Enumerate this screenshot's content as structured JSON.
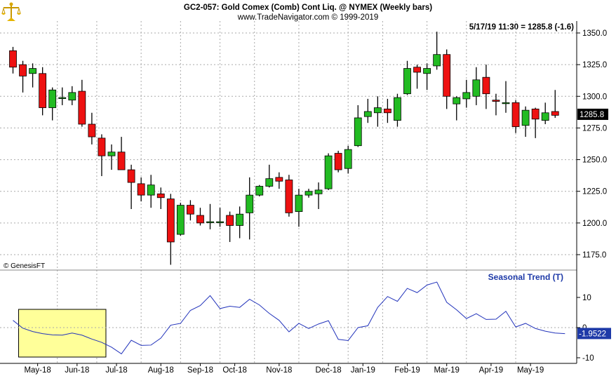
{
  "header": {
    "title": "GC2-057:  Gold Comex (Comb) Cont Liq. @ NYMEX  (Weekly bars)",
    "subtitle": "www.TradeNavigator.com © 1999-2019",
    "last_quote": "5/17/19 11:30 = 1285.8 (-1.6)",
    "copyright": "© GenesisFT",
    "logo_icon": "scales-logo-icon"
  },
  "chart_data": [
    {
      "type": "candlestick",
      "title": "GC2-057:  Gold Comex (Comb) Cont Liq. @ NYMEX  (Weekly bars)",
      "ylim": [
        1165,
        1360
      ],
      "yticks": [
        1175,
        1200,
        1225,
        1250,
        1275,
        1300,
        1325,
        1350
      ],
      "ytick_labels": [
        "1175.0",
        "1200.0",
        "1225.0",
        "1250.0",
        "1275.0",
        "1300.0",
        "1325.0",
        "1350.0"
      ],
      "current_value": 1285.8,
      "current_value_label": "1285.8",
      "up_color": "#22bb22",
      "down_color": "#ee1111",
      "candles": [
        {
          "o": 1336,
          "h": 1339,
          "l": 1318,
          "c": 1323
        },
        {
          "o": 1325,
          "h": 1328,
          "l": 1303,
          "c": 1316
        },
        {
          "o": 1318,
          "h": 1326,
          "l": 1307,
          "c": 1322
        },
        {
          "o": 1318,
          "h": 1323,
          "l": 1285,
          "c": 1291
        },
        {
          "o": 1291,
          "h": 1307,
          "l": 1281,
          "c": 1305
        },
        {
          "o": 1299,
          "h": 1307,
          "l": 1293,
          "c": 1299
        },
        {
          "o": 1297,
          "h": 1308,
          "l": 1293,
          "c": 1303
        },
        {
          "o": 1304,
          "h": 1313,
          "l": 1276,
          "c": 1278
        },
        {
          "o": 1278,
          "h": 1287,
          "l": 1262,
          "c": 1268
        },
        {
          "o": 1267,
          "h": 1270,
          "l": 1237,
          "c": 1253
        },
        {
          "o": 1253,
          "h": 1262,
          "l": 1242,
          "c": 1256
        },
        {
          "o": 1256,
          "h": 1268,
          "l": 1243,
          "c": 1242
        },
        {
          "o": 1242,
          "h": 1246,
          "l": 1211,
          "c": 1232
        },
        {
          "o": 1231,
          "h": 1236,
          "l": 1217,
          "c": 1222
        },
        {
          "o": 1222,
          "h": 1238,
          "l": 1212,
          "c": 1230
        },
        {
          "o": 1223,
          "h": 1228,
          "l": 1211,
          "c": 1220
        },
        {
          "o": 1219,
          "h": 1223,
          "l": 1167,
          "c": 1185
        },
        {
          "o": 1191,
          "h": 1216,
          "l": 1190,
          "c": 1214
        },
        {
          "o": 1214,
          "h": 1218,
          "l": 1202,
          "c": 1207
        },
        {
          "o": 1206,
          "h": 1212,
          "l": 1198,
          "c": 1200
        },
        {
          "o": 1201,
          "h": 1215,
          "l": 1195,
          "c": 1201
        },
        {
          "o": 1201,
          "h": 1212,
          "l": 1197,
          "c": 1201
        },
        {
          "o": 1206,
          "h": 1209,
          "l": 1185,
          "c": 1198
        },
        {
          "o": 1198,
          "h": 1213,
          "l": 1188,
          "c": 1207
        },
        {
          "o": 1208,
          "h": 1236,
          "l": 1187,
          "c": 1222
        },
        {
          "o": 1222,
          "h": 1230,
          "l": 1221,
          "c": 1229
        },
        {
          "o": 1229,
          "h": 1246,
          "l": 1228,
          "c": 1235
        },
        {
          "o": 1236,
          "h": 1240,
          "l": 1227,
          "c": 1233
        },
        {
          "o": 1234,
          "h": 1238,
          "l": 1205,
          "c": 1208
        },
        {
          "o": 1209,
          "h": 1227,
          "l": 1197,
          "c": 1222
        },
        {
          "o": 1222,
          "h": 1227,
          "l": 1220,
          "c": 1225
        },
        {
          "o": 1223,
          "h": 1232,
          "l": 1211,
          "c": 1226
        },
        {
          "o": 1227,
          "h": 1255,
          "l": 1226,
          "c": 1253
        },
        {
          "o": 1255,
          "h": 1257,
          "l": 1240,
          "c": 1242
        },
        {
          "o": 1243,
          "h": 1261,
          "l": 1239,
          "c": 1258
        },
        {
          "o": 1261,
          "h": 1293,
          "l": 1260,
          "c": 1283
        },
        {
          "o": 1284,
          "h": 1298,
          "l": 1279,
          "c": 1288
        },
        {
          "o": 1287,
          "h": 1300,
          "l": 1276,
          "c": 1291
        },
        {
          "o": 1290,
          "h": 1298,
          "l": 1279,
          "c": 1287
        },
        {
          "o": 1281,
          "h": 1302,
          "l": 1276,
          "c": 1299
        },
        {
          "o": 1302,
          "h": 1328,
          "l": 1301,
          "c": 1322
        },
        {
          "o": 1323,
          "h": 1325,
          "l": 1306,
          "c": 1319
        },
        {
          "o": 1318,
          "h": 1326,
          "l": 1305,
          "c": 1322
        },
        {
          "o": 1324,
          "h": 1351,
          "l": 1321,
          "c": 1333
        },
        {
          "o": 1333,
          "h": 1337,
          "l": 1290,
          "c": 1300
        },
        {
          "o": 1294,
          "h": 1300,
          "l": 1281,
          "c": 1299
        },
        {
          "o": 1298,
          "h": 1313,
          "l": 1291,
          "c": 1303
        },
        {
          "o": 1300,
          "h": 1323,
          "l": 1293,
          "c": 1313
        },
        {
          "o": 1315,
          "h": 1325,
          "l": 1290,
          "c": 1302
        },
        {
          "o": 1297,
          "h": 1302,
          "l": 1285,
          "c": 1296
        },
        {
          "o": 1295,
          "h": 1312,
          "l": 1287,
          "c": 1295
        },
        {
          "o": 1295,
          "h": 1297,
          "l": 1271,
          "c": 1276
        },
        {
          "o": 1277,
          "h": 1292,
          "l": 1268,
          "c": 1289
        },
        {
          "o": 1290,
          "h": 1291,
          "l": 1267,
          "c": 1282
        },
        {
          "o": 1281,
          "h": 1295,
          "l": 1278,
          "c": 1287
        },
        {
          "o": 1288,
          "h": 1305,
          "l": 1283,
          "c": 1285
        }
      ]
    },
    {
      "type": "line",
      "title": "Seasonal Trend (T)",
      "ylim": [
        -11,
        16
      ],
      "yticks": [
        -10,
        0,
        10
      ],
      "ytick_labels": [
        "-10",
        "0",
        "10"
      ],
      "current_value": -1.9522,
      "current_value_label": "-1.9522",
      "line_color": "#2233bb",
      "highlight_color": "#ffff99",
      "highlight_range": [
        0.5,
        9.5
      ],
      "x_labels": [
        "May-18",
        "Jun-18",
        "Jul-18",
        "Aug-18",
        "Sep-18",
        "Oct-18",
        "Nov-18",
        "Dec-18",
        "Jan-19",
        "Feb-19",
        "Mar-19",
        "Apr-19",
        "May-19"
      ],
      "x_label_positions": [
        2.5,
        6.5,
        10.5,
        15,
        19,
        22.5,
        27,
        32,
        35.5,
        40,
        44,
        48.5,
        52.5
      ],
      "month_grid_positions": [
        4.5,
        8.5,
        13,
        17,
        21,
        24.5,
        29,
        34,
        37.5,
        42,
        46,
        51
      ],
      "values": [
        2.4,
        -0.2,
        -1.3,
        -2.0,
        -2.4,
        -2.5,
        -1.8,
        -2.5,
        -3.8,
        -4.9,
        -6.5,
        -8.7,
        -4.2,
        -5.9,
        -5.8,
        -3.5,
        0.8,
        1.4,
        5.7,
        7.3,
        10.6,
        6.3,
        7.1,
        6.7,
        9.4,
        7.5,
        4.7,
        2.4,
        -1.4,
        1.4,
        -0.3,
        1.2,
        2.3,
        -3.9,
        -4.3,
        0.0,
        0.6,
        6.7,
        10.3,
        8.7,
        13.0,
        11.6,
        14.1,
        15.1,
        8.4,
        5.9,
        3.0,
        4.6,
        2.7,
        2.8,
        5.4,
        0.2,
        1.4,
        -0.3,
        -1.2,
        -1.8,
        -2.0
      ]
    }
  ]
}
